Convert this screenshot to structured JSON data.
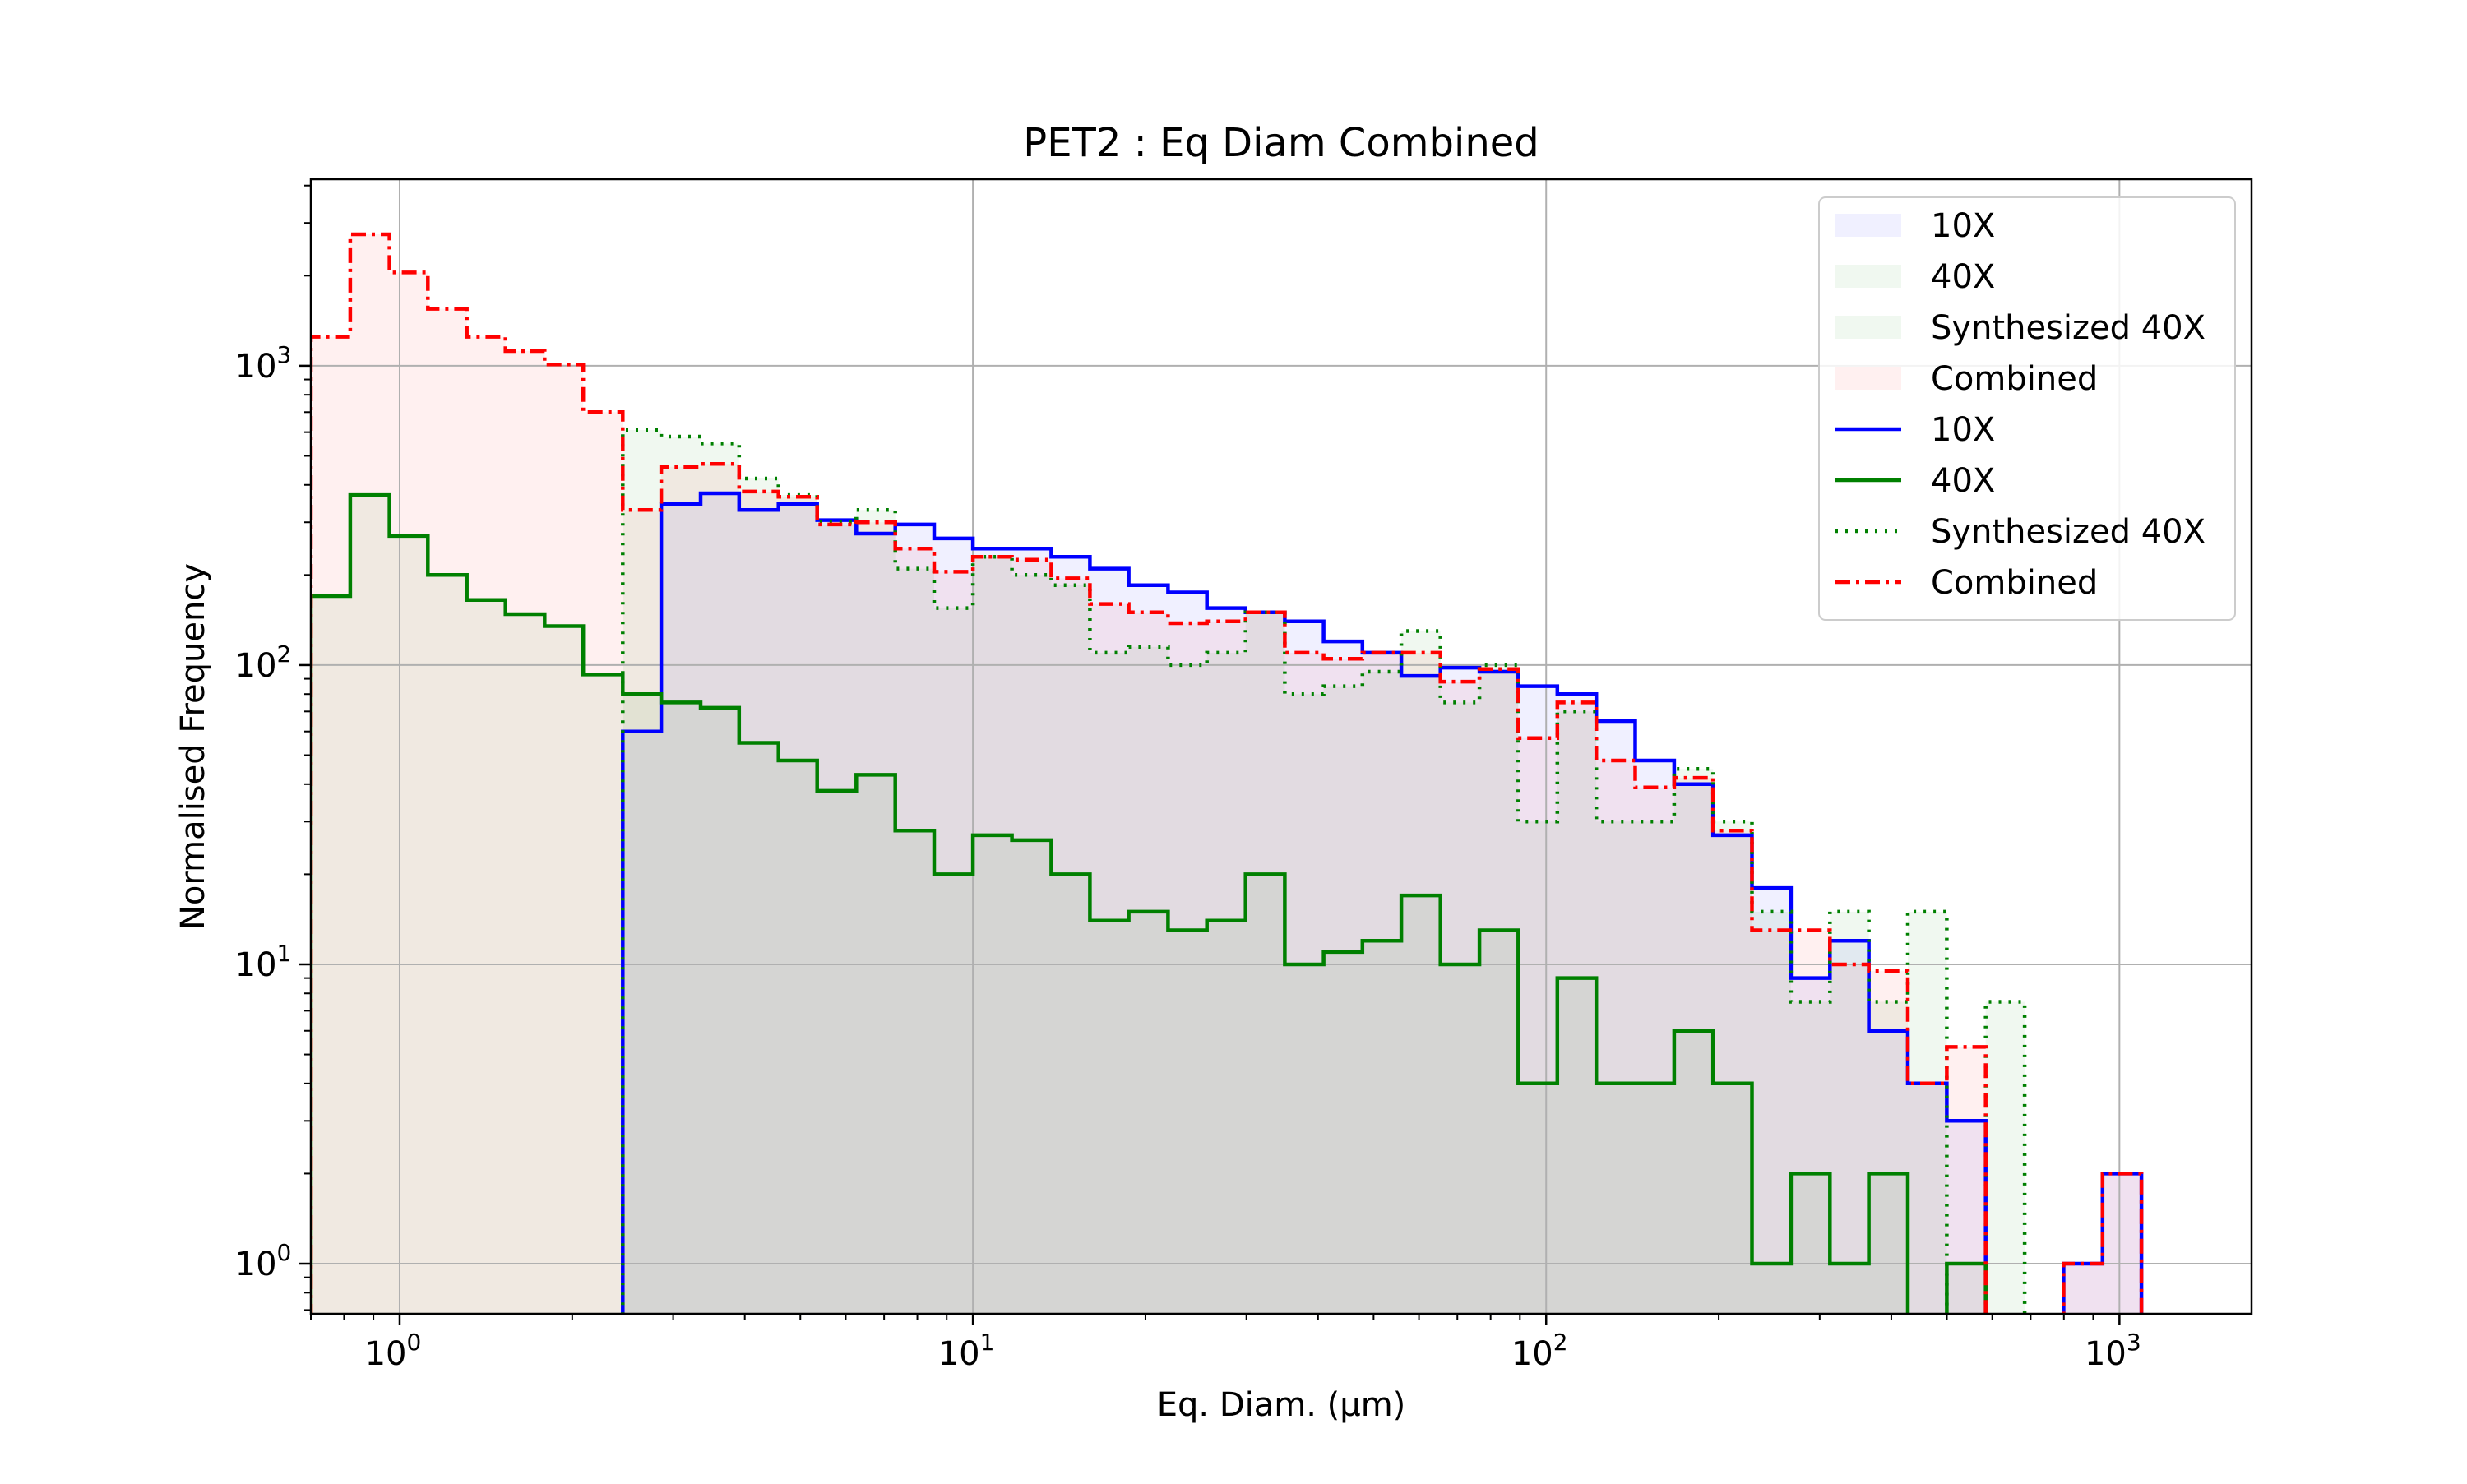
{
  "chart_data": {
    "type": "histogram",
    "title": "PET2 : Eq Diam Combined",
    "xlabel": "Eq. Diam. (μm)",
    "ylabel": "Normalised Frequency",
    "x_scale": "log",
    "y_scale": "log",
    "xlim": [
      0.7,
      1700
    ],
    "ylim": [
      0.68,
      4200
    ],
    "grid": true,
    "legend_position": "upper right",
    "x_ticks": [
      {
        "value": 1,
        "base": "10",
        "exp": "0"
      },
      {
        "value": 10,
        "base": "10",
        "exp": "1"
      },
      {
        "value": 100,
        "base": "10",
        "exp": "2"
      },
      {
        "value": 1000,
        "base": "10",
        "exp": "3"
      }
    ],
    "y_ticks": [
      {
        "value": 1,
        "base": "10",
        "exp": "0"
      },
      {
        "value": 10,
        "base": "10",
        "exp": "1"
      },
      {
        "value": 100,
        "base": "10",
        "exp": "2"
      },
      {
        "value": 1000,
        "base": "10",
        "exp": "3"
      }
    ],
    "bin_edges": [
      0.7,
      0.82,
      0.96,
      1.12,
      1.31,
      1.53,
      1.79,
      2.09,
      2.45,
      2.86,
      3.35,
      3.91,
      4.58,
      5.35,
      6.26,
      7.32,
      8.56,
      10.0,
      11.7,
      13.7,
      16.0,
      18.7,
      21.9,
      25.6,
      29.9,
      35.0,
      40.9,
      47.8,
      55.9,
      65.4,
      76.5,
      89.4,
      104.6,
      122.3,
      143,
      167.2,
      195.5,
      228.6,
      267.3,
      312.6,
      365.5,
      427.4,
      499.8,
      584.4,
      683.3,
      799,
      934.3,
      1092.5
    ],
    "series": [
      {
        "name": "10X",
        "color": "#0000ff",
        "line_style": "solid",
        "fill_color": "#0000ff",
        "values": [
          0,
          0,
          0,
          0,
          0,
          0,
          0,
          0,
          60,
          345,
          375,
          330,
          345,
          305,
          275,
          295,
          265,
          245,
          245,
          230,
          210,
          185,
          175,
          155,
          150,
          140,
          120,
          110,
          92,
          98,
          95,
          85,
          80,
          65,
          48,
          40,
          27,
          18,
          9,
          12,
          6,
          4,
          3,
          0,
          0,
          1,
          2
        ]
      },
      {
        "name": "40X",
        "color": "#008000",
        "line_style": "solid",
        "fill_color": "#008000",
        "values": [
          170,
          370,
          270,
          200,
          165,
          148,
          135,
          93,
          80,
          75,
          72,
          55,
          48,
          38,
          43,
          28,
          20,
          27,
          26,
          20,
          14,
          15,
          13,
          14,
          20,
          10,
          11,
          12,
          17,
          10,
          13,
          4,
          9,
          4,
          4,
          6,
          4,
          1,
          2,
          1,
          2,
          0,
          1,
          0,
          0,
          0,
          0
        ]
      },
      {
        "name": "Synthesized 40X",
        "color": "#008000",
        "line_style": "dotted",
        "fill_color": "#008000",
        "values": [
          0,
          0,
          0,
          0,
          0,
          0,
          0,
          0,
          610,
          580,
          550,
          420,
          370,
          300,
          330,
          210,
          155,
          230,
          200,
          185,
          110,
          115,
          100,
          110,
          150,
          80,
          85,
          95,
          130,
          75,
          100,
          30,
          70,
          30,
          30,
          45,
          30,
          15,
          7.5,
          15,
          7.5,
          15,
          0,
          7.5,
          0,
          0,
          0
        ]
      },
      {
        "name": "Combined",
        "color": "#ff0000",
        "line_style": "dashdot",
        "fill_color": "#ff0000",
        "values": [
          1250,
          2750,
          2050,
          1550,
          1250,
          1120,
          1010,
          700,
          330,
          460,
          470,
          380,
          365,
          295,
          300,
          245,
          205,
          230,
          225,
          195,
          160,
          150,
          138,
          140,
          150,
          110,
          105,
          110,
          110,
          88,
          97,
          57,
          75,
          48,
          39,
          42,
          28,
          13,
          13,
          10,
          9.5,
          4,
          5.3,
          0,
          0,
          1,
          2
        ]
      }
    ]
  }
}
